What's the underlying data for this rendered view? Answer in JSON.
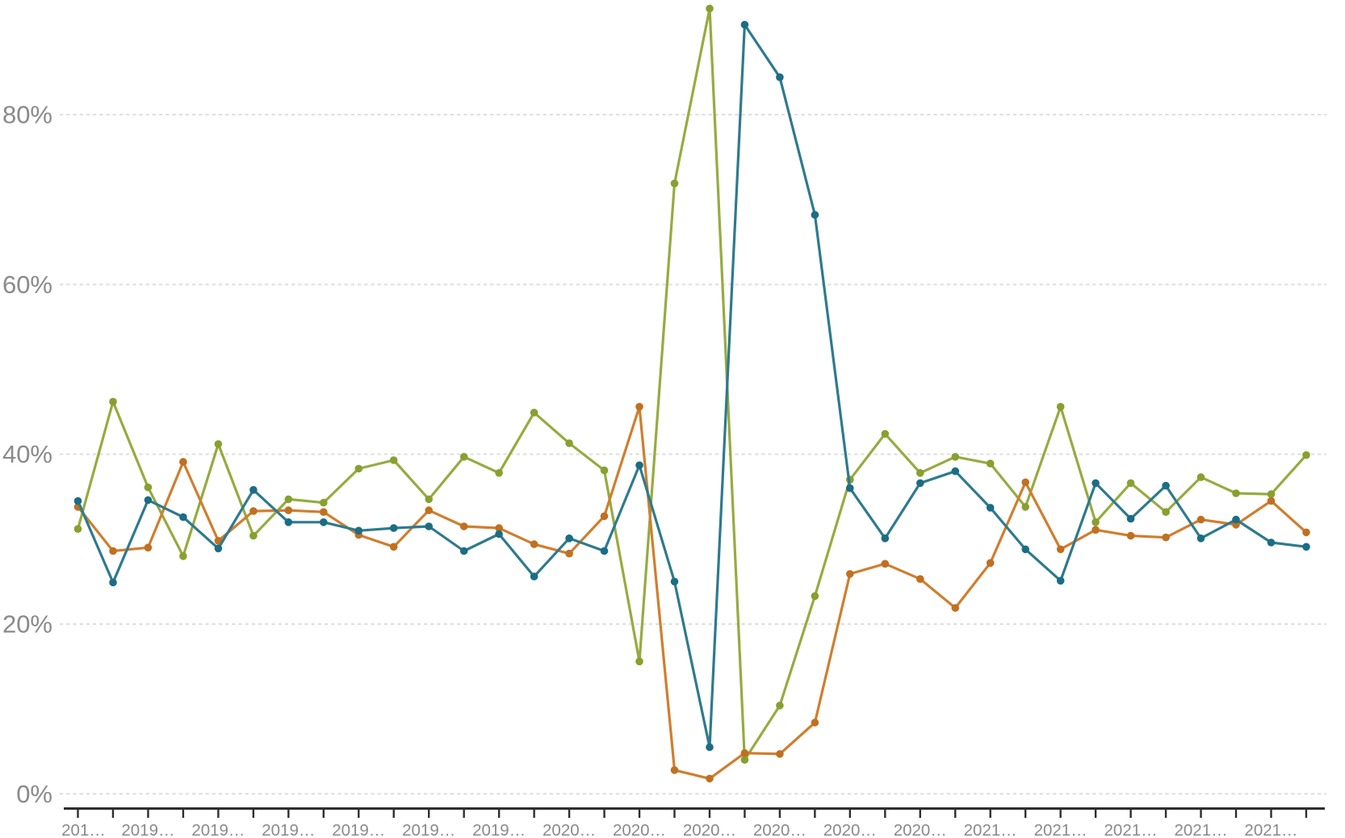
{
  "page": {
    "background_color": "#ffffff",
    "title": ""
  },
  "chart_data": {
    "type": "line",
    "title": "",
    "subtitle": "",
    "legend": null,
    "grid": {
      "horizontal": true,
      "vertical": false,
      "style": "dashed",
      "color": "#dedede"
    },
    "x_axis": {
      "tick_count": 36,
      "labels_every_n_ticks": 2,
      "axis_line_color": "#2e2e2e",
      "tick_color": "#2e2e2e",
      "label_color": "#8a8a8a",
      "tick_labels": [
        "201…",
        "2019…",
        "2019…",
        "2019…",
        "2019…",
        "2019…",
        "2019…",
        "2020…",
        "2020…",
        "2020…",
        "2020…",
        "2020…",
        "2020…",
        "2021…",
        "2021…",
        "2021…",
        "2021…",
        "2021…"
      ]
    },
    "y_axis": {
      "tick_labels": [
        "0%",
        "20%",
        "40%",
        "60%",
        "80%"
      ],
      "tick_values": [
        0,
        20,
        40,
        60,
        80
      ],
      "range": [
        0,
        95
      ],
      "label_color": "#8a8a8a"
    },
    "series": [
      {
        "name": "green",
        "color": "#96ab40",
        "dot_color": "#87a02f",
        "values": [
          31.2,
          46.2,
          36.1,
          28.0,
          41.2,
          30.4,
          34.7,
          34.3,
          38.3,
          39.3,
          34.7,
          39.7,
          37.8,
          44.9,
          41.3,
          38.1,
          15.6,
          71.9,
          92.5,
          4.0,
          10.4,
          23.3,
          37.0,
          42.4,
          37.8,
          39.7,
          38.9,
          33.8,
          45.6,
          32.0,
          36.6,
          33.2,
          37.3,
          35.4,
          35.3,
          39.9
        ]
      },
      {
        "name": "orange",
        "color": "#d07e2e",
        "dot_color": "#c07020",
        "values": [
          33.8,
          28.6,
          29.0,
          39.1,
          29.8,
          33.3,
          33.4,
          33.2,
          30.5,
          29.1,
          33.4,
          31.5,
          31.3,
          29.4,
          28.3,
          32.7,
          45.6,
          2.8,
          1.8,
          4.8,
          4.7,
          8.4,
          25.9,
          27.1,
          25.3,
          21.9,
          27.2,
          36.7,
          28.8,
          31.1,
          30.4,
          30.2,
          32.3,
          31.7,
          34.5,
          30.8
        ]
      },
      {
        "name": "teal",
        "color": "#2e7a8e",
        "dot_color": "#1b6d85",
        "values": [
          34.5,
          24.9,
          34.6,
          32.6,
          28.9,
          35.8,
          32.0,
          32.0,
          31.0,
          31.3,
          31.5,
          28.6,
          30.6,
          25.6,
          30.1,
          28.6,
          38.7,
          25.0,
          5.5,
          90.6,
          84.4,
          68.2,
          36.0,
          30.1,
          36.6,
          38.0,
          33.7,
          28.8,
          25.1,
          36.6,
          32.4,
          36.3,
          30.1,
          32.3,
          29.6,
          29.1
        ]
      }
    ]
  }
}
